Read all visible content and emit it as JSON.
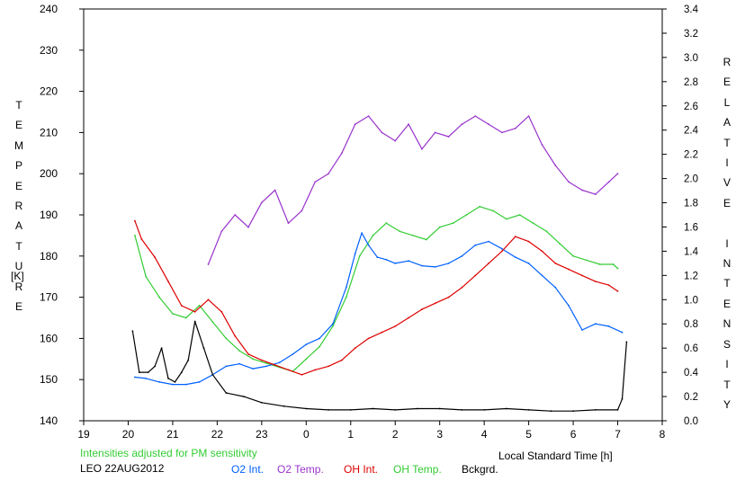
{
  "chart_data": {
    "type": "line",
    "left_axis_title": "TEMPERATURE",
    "left_axis_unit": "[K]",
    "right_axis_title": "RELATIVE INTENSITY",
    "xlabel": "Local Standard Time [h]",
    "note": "Intensities adjusted for PM sensitivity",
    "station_date": "LEO 22AUG2012",
    "x_tick_labels": [
      "19",
      "20",
      "21",
      "22",
      "23",
      "0",
      "1",
      "2",
      "3",
      "4",
      "5",
      "6",
      "7",
      "8"
    ],
    "y_left_ticks": [
      140,
      150,
      160,
      170,
      180,
      190,
      200,
      210,
      220,
      230,
      240
    ],
    "y_right_ticks": [
      "0.0",
      "0.2",
      "0.4",
      "0.6",
      "0.8",
      "1.0",
      "1.2",
      "1.4",
      "1.6",
      "1.8",
      "2.0",
      "2.2",
      "2.4",
      "2.6",
      "2.8",
      "3.0",
      "3.2",
      "3.4"
    ],
    "xlim": [
      19,
      32
    ],
    "ylim_left": [
      140,
      240
    ],
    "ylim_right": [
      0,
      3.4
    ],
    "grid": false,
    "legend_position": "bottom",
    "series": [
      {
        "name": "O2 Int.",
        "color": "#0060ff",
        "axis": "right",
        "x": [
          20.15,
          20.4,
          20.7,
          21.0,
          21.3,
          21.6,
          21.9,
          22.2,
          22.5,
          22.8,
          23.1,
          23.4,
          23.7,
          24.0,
          24.3,
          24.6,
          24.9,
          25.1,
          25.25,
          25.4,
          25.6,
          25.8,
          26.0,
          26.3,
          26.6,
          26.9,
          27.2,
          27.5,
          27.8,
          28.1,
          28.4,
          28.7,
          29.0,
          29.3,
          29.6,
          29.9,
          30.2,
          30.5,
          30.8,
          31.1
        ],
        "values": [
          0.36,
          0.35,
          0.32,
          0.3,
          0.3,
          0.32,
          0.38,
          0.45,
          0.47,
          0.43,
          0.45,
          0.48,
          0.55,
          0.63,
          0.68,
          0.8,
          1.1,
          1.38,
          1.55,
          1.45,
          1.35,
          1.33,
          1.3,
          1.32,
          1.28,
          1.27,
          1.3,
          1.36,
          1.45,
          1.48,
          1.42,
          1.35,
          1.3,
          1.2,
          1.1,
          0.95,
          0.75,
          0.8,
          0.78,
          0.73
        ]
      },
      {
        "name": "O2 Temp.",
        "color": "#9933cc",
        "axis": "left",
        "x": [
          21.8,
          22.1,
          22.4,
          22.7,
          23.0,
          23.3,
          23.6,
          23.9,
          24.2,
          24.5,
          24.8,
          25.1,
          25.4,
          25.7,
          26.0,
          26.3,
          26.6,
          26.9,
          27.2,
          27.5,
          27.8,
          28.1,
          28.4,
          28.7,
          29.0,
          29.3,
          29.6,
          29.9,
          30.2,
          30.5,
          30.8,
          31.0
        ],
        "values": [
          178,
          186,
          190,
          187,
          193,
          196,
          188,
          191,
          198,
          200,
          205,
          212,
          214,
          210,
          208,
          212,
          206,
          210,
          209,
          212,
          214,
          212,
          210,
          211,
          214,
          207,
          202,
          198,
          196,
          195,
          198,
          200
        ]
      },
      {
        "name": "OH Int.",
        "color": "#dd0000",
        "axis": "right",
        "x": [
          20.15,
          20.3,
          20.6,
          20.9,
          21.2,
          21.5,
          21.8,
          22.1,
          22.4,
          22.7,
          23.0,
          23.3,
          23.6,
          23.9,
          24.2,
          24.5,
          24.8,
          25.1,
          25.4,
          25.7,
          26.0,
          26.3,
          26.6,
          26.9,
          27.2,
          27.5,
          27.8,
          28.1,
          28.4,
          28.7,
          29.0,
          29.3,
          29.6,
          29.9,
          30.2,
          30.5,
          30.8,
          31.0
        ],
        "values": [
          1.65,
          1.5,
          1.35,
          1.15,
          0.95,
          0.9,
          1.0,
          0.9,
          0.7,
          0.55,
          0.5,
          0.46,
          0.42,
          0.38,
          0.42,
          0.45,
          0.5,
          0.6,
          0.68,
          0.73,
          0.78,
          0.85,
          0.92,
          0.97,
          1.02,
          1.1,
          1.2,
          1.3,
          1.4,
          1.52,
          1.48,
          1.4,
          1.3,
          1.25,
          1.2,
          1.15,
          1.12,
          1.07
        ]
      },
      {
        "name": "OH Temp.",
        "color": "#33cc33",
        "axis": "left",
        "x": [
          20.15,
          20.4,
          20.7,
          21.0,
          21.3,
          21.6,
          21.9,
          22.2,
          22.5,
          22.8,
          23.1,
          23.4,
          23.7,
          24.0,
          24.3,
          24.6,
          24.9,
          25.2,
          25.5,
          25.8,
          26.1,
          26.4,
          26.7,
          27.0,
          27.3,
          27.6,
          27.9,
          28.2,
          28.5,
          28.8,
          29.1,
          29.4,
          29.7,
          30.0,
          30.3,
          30.6,
          30.9,
          31.0
        ],
        "values": [
          185,
          175,
          170,
          166,
          165,
          168,
          164,
          160,
          157,
          155,
          154,
          153,
          152,
          155,
          158,
          163,
          170,
          180,
          185,
          188,
          186,
          185,
          184,
          187,
          188,
          190,
          192,
          191,
          189,
          190,
          188,
          186,
          183,
          180,
          179,
          178,
          178,
          177
        ]
      },
      {
        "name": "Bckgrd.",
        "color": "#000000",
        "axis": "right",
        "x": [
          20.1,
          20.25,
          20.45,
          20.6,
          20.75,
          20.9,
          21.05,
          21.2,
          21.35,
          21.5,
          21.7,
          21.9,
          22.2,
          22.6,
          23.0,
          23.5,
          24.0,
          24.5,
          25.0,
          25.5,
          26.0,
          26.5,
          27.0,
          27.5,
          28.0,
          28.5,
          29.0,
          29.5,
          30.0,
          30.5,
          31.0,
          31.1,
          31.2
        ],
        "values": [
          0.74,
          0.4,
          0.4,
          0.45,
          0.6,
          0.35,
          0.32,
          0.4,
          0.5,
          0.82,
          0.6,
          0.38,
          0.23,
          0.2,
          0.15,
          0.12,
          0.1,
          0.09,
          0.09,
          0.1,
          0.09,
          0.1,
          0.1,
          0.09,
          0.09,
          0.1,
          0.09,
          0.08,
          0.08,
          0.09,
          0.09,
          0.18,
          0.65
        ]
      }
    ]
  }
}
